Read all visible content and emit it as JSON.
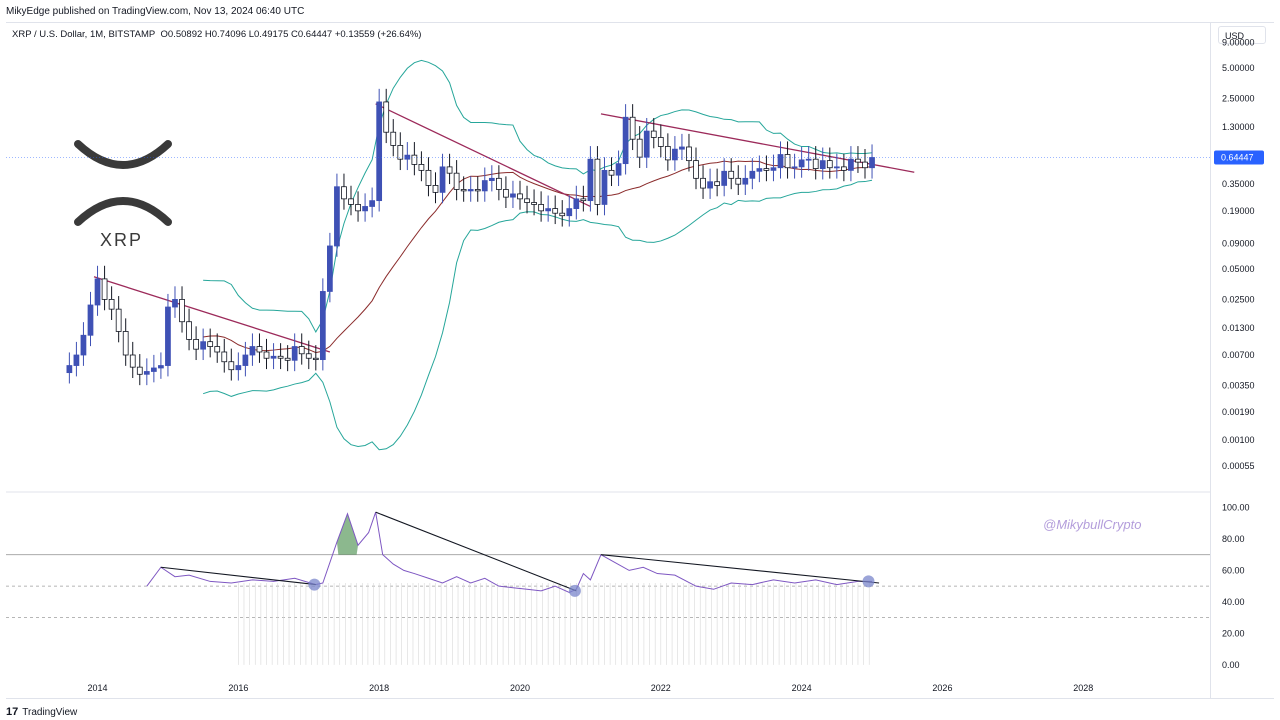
{
  "header": {
    "published": "MikyEdge published on TradingView.com, Nov 13, 2024 06:40 UTC",
    "symbol_line": "XRP / U.S. Dollar, 1M, BITSTAMP",
    "ohlc": "O0.50892  H0.74096  L0.49175  C0.64447  +0.13559 (+26.64%)"
  },
  "currency_button": "USD",
  "logo": {
    "word": "XRP",
    "icon": "xrp-logo-icon"
  },
  "watermark": "@MikybullCrypto",
  "footer": {
    "brand": "TradingView",
    "icon": "tradingview-logo-icon"
  },
  "colors": {
    "bull": "#3f51b5",
    "bear": "#131722",
    "bb_band": "#26a69a",
    "bb_basis": "#8b2c2c",
    "trendline": "#9c2a5a",
    "rsi": "#7e57c2",
    "rsi_fill_ob": "#2e7d32",
    "price_label_bg": "#2962ff"
  },
  "chart_data": [
    {
      "type": "candlestick",
      "title": "",
      "scale": "log",
      "price_axis_ticks": [
        "9.00000",
        "5.00000",
        "2.50000",
        "1.30000",
        "0.64447",
        "0.35000",
        "0.19000",
        "0.09000",
        "0.05000",
        "0.02500",
        "0.01300",
        "0.00700",
        "0.00350",
        "0.00190",
        "0.00100",
        "0.00055"
      ],
      "price_tick_values": [
        9.0,
        5.0,
        2.5,
        1.3,
        0.35,
        0.19,
        0.09,
        0.05,
        0.025,
        0.013,
        0.007,
        0.0035,
        0.0019,
        0.001,
        0.00055
      ],
      "last_price_label": "0.64447",
      "last_price": 0.64447,
      "ylim": [
        0.0004,
        9.5
      ],
      "x_axis_ticks": [
        "2014",
        "2016",
        "2018",
        "2020",
        "2022",
        "2024",
        "2026",
        "2028"
      ],
      "xlim": [
        2012.7,
        2029.8
      ],
      "candle_closes": [
        [
          2013.6,
          0.0055
        ],
        [
          2013.7,
          0.007
        ],
        [
          2013.8,
          0.011
        ],
        [
          2013.9,
          0.022
        ],
        [
          2014.0,
          0.04
        ],
        [
          2014.1,
          0.025
        ],
        [
          2014.2,
          0.02
        ],
        [
          2014.3,
          0.012
        ],
        [
          2014.4,
          0.007
        ],
        [
          2014.5,
          0.0053
        ],
        [
          2014.6,
          0.0045
        ],
        [
          2014.7,
          0.0048
        ],
        [
          2014.8,
          0.0052
        ],
        [
          2014.9,
          0.0055
        ],
        [
          2015.0,
          0.021
        ],
        [
          2015.1,
          0.025
        ],
        [
          2015.2,
          0.015
        ],
        [
          2015.3,
          0.01
        ],
        [
          2015.4,
          0.008
        ],
        [
          2015.5,
          0.0095
        ],
        [
          2015.6,
          0.0085
        ],
        [
          2015.7,
          0.0075
        ],
        [
          2015.8,
          0.006
        ],
        [
          2015.9,
          0.005
        ],
        [
          2016.0,
          0.0055
        ],
        [
          2016.1,
          0.007
        ],
        [
          2016.2,
          0.0085
        ],
        [
          2016.3,
          0.0075
        ],
        [
          2016.4,
          0.0065
        ],
        [
          2016.5,
          0.0068
        ],
        [
          2016.6,
          0.0065
        ],
        [
          2016.7,
          0.0062
        ],
        [
          2016.8,
          0.0085
        ],
        [
          2016.9,
          0.0072
        ],
        [
          2017.0,
          0.0065
        ],
        [
          2017.1,
          0.0063
        ],
        [
          2017.2,
          0.03
        ],
        [
          2017.3,
          0.085
        ],
        [
          2017.4,
          0.33
        ],
        [
          2017.5,
          0.25
        ],
        [
          2017.6,
          0.22
        ],
        [
          2017.7,
          0.19
        ],
        [
          2017.8,
          0.21
        ],
        [
          2017.9,
          0.24
        ],
        [
          2018.0,
          2.3
        ],
        [
          2018.1,
          1.15
        ],
        [
          2018.2,
          0.85
        ],
        [
          2018.3,
          0.62
        ],
        [
          2018.4,
          0.68
        ],
        [
          2018.5,
          0.55
        ],
        [
          2018.6,
          0.48
        ],
        [
          2018.7,
          0.34
        ],
        [
          2018.8,
          0.29
        ],
        [
          2018.9,
          0.52
        ],
        [
          2019.0,
          0.45
        ],
        [
          2019.1,
          0.31
        ],
        [
          2019.2,
          0.3
        ],
        [
          2019.3,
          0.31
        ],
        [
          2019.4,
          0.3
        ],
        [
          2019.5,
          0.38
        ],
        [
          2019.6,
          0.4
        ],
        [
          2019.7,
          0.31
        ],
        [
          2019.8,
          0.26
        ],
        [
          2019.9,
          0.28
        ],
        [
          2020.0,
          0.25
        ],
        [
          2020.1,
          0.23
        ],
        [
          2020.2,
          0.22
        ],
        [
          2020.3,
          0.19
        ],
        [
          2020.4,
          0.2
        ],
        [
          2020.5,
          0.18
        ],
        [
          2020.6,
          0.17
        ],
        [
          2020.7,
          0.2
        ],
        [
          2020.8,
          0.25
        ],
        [
          2020.9,
          0.24
        ],
        [
          2021.0,
          0.62
        ],
        [
          2021.1,
          0.22
        ],
        [
          2021.2,
          0.48
        ],
        [
          2021.3,
          0.43
        ],
        [
          2021.4,
          0.56
        ],
        [
          2021.5,
          1.62
        ],
        [
          2021.6,
          0.98
        ],
        [
          2021.7,
          0.65
        ],
        [
          2021.8,
          1.18
        ],
        [
          2021.9,
          1.02
        ],
        [
          2022.0,
          0.83
        ],
        [
          2022.1,
          0.61
        ],
        [
          2022.2,
          0.78
        ],
        [
          2022.3,
          0.82
        ],
        [
          2022.4,
          0.6
        ],
        [
          2022.5,
          0.4
        ],
        [
          2022.6,
          0.32
        ],
        [
          2022.7,
          0.37
        ],
        [
          2022.8,
          0.34
        ],
        [
          2022.9,
          0.47
        ],
        [
          2023.0,
          0.4
        ],
        [
          2023.1,
          0.35
        ],
        [
          2023.2,
          0.4
        ],
        [
          2023.3,
          0.47
        ],
        [
          2023.4,
          0.5
        ],
        [
          2023.5,
          0.48
        ],
        [
          2023.6,
          0.51
        ],
        [
          2023.7,
          0.69
        ],
        [
          2023.8,
          0.51
        ],
        [
          2023.9,
          0.52
        ],
        [
          2024.0,
          0.61
        ],
        [
          2024.1,
          0.62
        ],
        [
          2024.2,
          0.5
        ],
        [
          2024.3,
          0.6
        ],
        [
          2024.4,
          0.51
        ],
        [
          2024.5,
          0.52
        ],
        [
          2024.6,
          0.48
        ],
        [
          2024.7,
          0.62
        ],
        [
          2024.8,
          0.58
        ],
        [
          2024.9,
          0.51
        ],
        [
          2025.0,
          0.64447
        ]
      ]
    },
    {
      "type": "line",
      "title": "",
      "scale": "linear",
      "y_axis_ticks": [
        "100.00",
        "80.00",
        "60.00",
        "40.00",
        "20.00",
        "0.00"
      ],
      "y_tick_values": [
        100,
        80,
        60,
        40,
        20,
        0
      ],
      "ylim": [
        -2,
        106
      ],
      "guides": [
        70,
        50,
        30
      ],
      "series": [
        {
          "values": [
            [
              2014.7,
              50
            ],
            [
              2014.9,
              62
            ],
            [
              2015.1,
              56
            ],
            [
              2015.3,
              57
            ],
            [
              2015.6,
              53
            ],
            [
              2015.9,
              52
            ],
            [
              2016.2,
              54
            ],
            [
              2016.5,
              53
            ],
            [
              2016.8,
              55
            ],
            [
              2017.1,
              51
            ],
            [
              2017.2,
              52
            ],
            [
              2017.4,
              78
            ],
            [
              2017.55,
              96
            ],
            [
              2017.7,
              76
            ],
            [
              2017.85,
              84
            ],
            [
              2017.95,
              97
            ],
            [
              2018.05,
              70
            ],
            [
              2018.2,
              64
            ],
            [
              2018.35,
              60
            ],
            [
              2018.5,
              58
            ],
            [
              2018.7,
              55
            ],
            [
              2018.9,
              52
            ],
            [
              2019.1,
              56
            ],
            [
              2019.3,
              52
            ],
            [
              2019.5,
              55
            ],
            [
              2019.7,
              50
            ],
            [
              2019.9,
              49
            ],
            [
              2020.1,
              48
            ],
            [
              2020.3,
              47
            ],
            [
              2020.5,
              50
            ],
            [
              2020.7,
              46
            ],
            [
              2020.8,
              48
            ],
            [
              2020.9,
              58
            ],
            [
              2021.0,
              54
            ],
            [
              2021.15,
              70
            ],
            [
              2021.35,
              65
            ],
            [
              2021.55,
              60
            ],
            [
              2021.75,
              62
            ],
            [
              2021.95,
              58
            ],
            [
              2022.2,
              57
            ],
            [
              2022.5,
              50
            ],
            [
              2022.75,
              48
            ],
            [
              2023.0,
              52
            ],
            [
              2023.3,
              51
            ],
            [
              2023.6,
              54
            ],
            [
              2023.9,
              52
            ],
            [
              2024.2,
              54
            ],
            [
              2024.5,
              51
            ],
            [
              2024.8,
              53
            ],
            [
              2025.0,
              53
            ]
          ]
        }
      ],
      "markers": [
        [
          2017.08,
          51
        ],
        [
          2020.78,
          47
        ],
        [
          2024.95,
          53
        ]
      ]
    }
  ]
}
